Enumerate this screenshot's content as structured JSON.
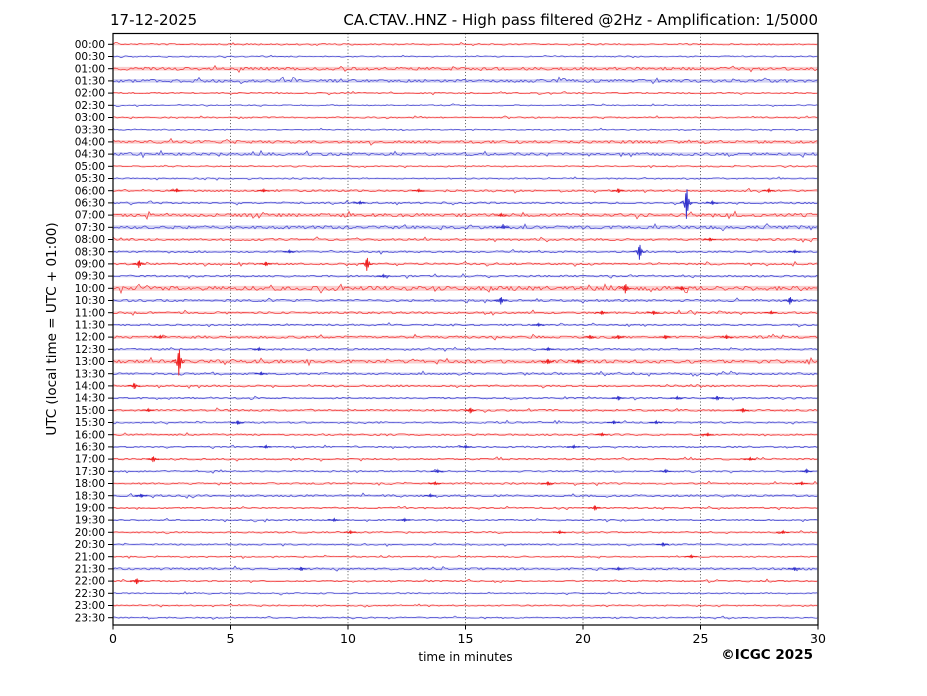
{
  "header": {
    "date": "17-12-2025",
    "title": "CA.CTAV..HNZ - High pass filtered @2Hz - Amplification: 1/5000"
  },
  "axes": {
    "ylabel": "UTC (local time = UTC + 01:00)",
    "xlabel": "time in minutes"
  },
  "footer": {
    "copyright": "©ICGC 2025"
  },
  "chart_data": {
    "type": "line",
    "subtype": "helicorder-dayplot",
    "station": "CA.CTAV..HNZ",
    "date": "17-12-2025",
    "filter": "High pass filtered @2Hz",
    "amplification": "1/5000",
    "minutes_per_line": 30,
    "xlim": [
      0,
      30
    ],
    "xticks": [
      0,
      5,
      10,
      15,
      20,
      25,
      30
    ],
    "gridline_minutes": [
      5,
      10,
      15,
      20,
      25
    ],
    "grid_color": "#444444",
    "trace_colors": {
      "red": "#ee2222",
      "blue": "#3333cc"
    },
    "rows": [
      {
        "label": "00:00",
        "color": "red",
        "noise": 0.9
      },
      {
        "label": "00:30",
        "color": "blue",
        "noise": 0.7
      },
      {
        "label": "01:00",
        "color": "red",
        "noise": 1.7
      },
      {
        "label": "01:30",
        "color": "blue",
        "noise": 1.7
      },
      {
        "label": "02:00",
        "color": "red",
        "noise": 0.8
      },
      {
        "label": "02:30",
        "color": "blue",
        "noise": 0.7
      },
      {
        "label": "03:00",
        "color": "red",
        "noise": 0.8
      },
      {
        "label": "03:30",
        "color": "blue",
        "noise": 0.7
      },
      {
        "label": "04:00",
        "color": "red",
        "noise": 1.6
      },
      {
        "label": "04:30",
        "color": "blue",
        "noise": 1.6
      },
      {
        "label": "05:00",
        "color": "red",
        "noise": 0.8
      },
      {
        "label": "05:30",
        "color": "blue",
        "noise": 0.8
      },
      {
        "label": "06:00",
        "color": "red",
        "noise": 1.1
      },
      {
        "label": "06:30",
        "color": "blue",
        "noise": 1.1
      },
      {
        "label": "07:00",
        "color": "red",
        "noise": 1.8
      },
      {
        "label": "07:30",
        "color": "blue",
        "noise": 1.8
      },
      {
        "label": "08:00",
        "color": "red",
        "noise": 1.2
      },
      {
        "label": "08:30",
        "color": "blue",
        "noise": 1.1
      },
      {
        "label": "09:00",
        "color": "red",
        "noise": 1.1
      },
      {
        "label": "09:30",
        "color": "blue",
        "noise": 1.1
      },
      {
        "label": "10:00",
        "color": "red",
        "noise": 2.3
      },
      {
        "label": "10:30",
        "color": "blue",
        "noise": 1.3
      },
      {
        "label": "11:00",
        "color": "red",
        "noise": 1.2
      },
      {
        "label": "11:30",
        "color": "blue",
        "noise": 1.0
      },
      {
        "label": "12:00",
        "color": "red",
        "noise": 1.4
      },
      {
        "label": "12:30",
        "color": "blue",
        "noise": 1.1
      },
      {
        "label": "13:00",
        "color": "red",
        "noise": 1.9
      },
      {
        "label": "13:30",
        "color": "blue",
        "noise": 1.2
      },
      {
        "label": "14:00",
        "color": "red",
        "noise": 1.1
      },
      {
        "label": "14:30",
        "color": "blue",
        "noise": 1.0
      },
      {
        "label": "15:00",
        "color": "red",
        "noise": 1.1
      },
      {
        "label": "15:30",
        "color": "blue",
        "noise": 1.0
      },
      {
        "label": "16:00",
        "color": "red",
        "noise": 1.0
      },
      {
        "label": "16:30",
        "color": "blue",
        "noise": 0.9
      },
      {
        "label": "17:00",
        "color": "red",
        "noise": 1.0
      },
      {
        "label": "17:30",
        "color": "blue",
        "noise": 0.9
      },
      {
        "label": "18:00",
        "color": "red",
        "noise": 1.0
      },
      {
        "label": "18:30",
        "color": "blue",
        "noise": 1.2
      },
      {
        "label": "19:00",
        "color": "red",
        "noise": 0.9
      },
      {
        "label": "19:30",
        "color": "blue",
        "noise": 0.9
      },
      {
        "label": "20:00",
        "color": "red",
        "noise": 0.9
      },
      {
        "label": "20:30",
        "color": "blue",
        "noise": 0.9
      },
      {
        "label": "21:00",
        "color": "red",
        "noise": 0.8
      },
      {
        "label": "21:30",
        "color": "blue",
        "noise": 1.3
      },
      {
        "label": "22:00",
        "color": "red",
        "noise": 0.9
      },
      {
        "label": "22:30",
        "color": "blue",
        "noise": 0.8
      },
      {
        "label": "23:00",
        "color": "red",
        "noise": 0.8
      },
      {
        "label": "23:30",
        "color": "blue",
        "noise": 0.8
      }
    ],
    "events": [
      {
        "row": "06:00",
        "minute": 2.7,
        "amp": 1.5
      },
      {
        "row": "06:00",
        "minute": 6.4,
        "amp": 1.5
      },
      {
        "row": "06:00",
        "minute": 13.0,
        "amp": 1.5
      },
      {
        "row": "06:00",
        "minute": 21.5,
        "amp": 2.2
      },
      {
        "row": "06:00",
        "minute": 27.9,
        "amp": 1.8
      },
      {
        "row": "06:30",
        "minute": 10.5,
        "amp": 1.5
      },
      {
        "row": "06:30",
        "minute": 24.4,
        "amp": 16
      },
      {
        "row": "06:30",
        "minute": 25.5,
        "amp": 1.8
      },
      {
        "row": "07:00",
        "minute": 16.5,
        "amp": 1.5
      },
      {
        "row": "07:30",
        "minute": 16.6,
        "amp": 1.5
      },
      {
        "row": "08:00",
        "minute": 25.4,
        "amp": 1.8
      },
      {
        "row": "08:30",
        "minute": 7.5,
        "amp": 1.5
      },
      {
        "row": "08:30",
        "minute": 22.4,
        "amp": 8
      },
      {
        "row": "08:30",
        "minute": 29.0,
        "amp": 1.5
      },
      {
        "row": "09:00",
        "minute": 1.1,
        "amp": 4
      },
      {
        "row": "09:00",
        "minute": 6.5,
        "amp": 2.2
      },
      {
        "row": "09:00",
        "minute": 10.8,
        "amp": 7
      },
      {
        "row": "09:30",
        "minute": 11.5,
        "amp": 1.5
      },
      {
        "row": "10:00",
        "minute": 21.8,
        "amp": 5
      },
      {
        "row": "10:00",
        "minute": 24.2,
        "amp": 2
      },
      {
        "row": "10:30",
        "minute": 16.5,
        "amp": 4
      },
      {
        "row": "10:30",
        "minute": 28.8,
        "amp": 4
      },
      {
        "row": "11:00",
        "minute": 20.8,
        "amp": 2
      },
      {
        "row": "11:00",
        "minute": 23.0,
        "amp": 2
      },
      {
        "row": "11:00",
        "minute": 28.0,
        "amp": 1.5
      },
      {
        "row": "11:30",
        "minute": 18.1,
        "amp": 1.5
      },
      {
        "row": "12:00",
        "minute": 2.0,
        "amp": 1.5
      },
      {
        "row": "12:00",
        "minute": 20.3,
        "amp": 2
      },
      {
        "row": "12:00",
        "minute": 21.5,
        "amp": 2
      },
      {
        "row": "12:00",
        "minute": 23.5,
        "amp": 2
      },
      {
        "row": "12:00",
        "minute": 26.1,
        "amp": 1.8
      },
      {
        "row": "12:30",
        "minute": 6.2,
        "amp": 1.5
      },
      {
        "row": "12:30",
        "minute": 18.5,
        "amp": 1.5
      },
      {
        "row": "13:00",
        "minute": 2.8,
        "amp": 14
      },
      {
        "row": "13:00",
        "minute": 18.5,
        "amp": 2.5
      },
      {
        "row": "13:00",
        "minute": 19.8,
        "amp": 2
      },
      {
        "row": "13:30",
        "minute": 6.3,
        "amp": 1.5
      },
      {
        "row": "14:00",
        "minute": 0.9,
        "amp": 3
      },
      {
        "row": "14:30",
        "minute": 21.5,
        "amp": 2.2
      },
      {
        "row": "14:30",
        "minute": 24.0,
        "amp": 1.5
      },
      {
        "row": "14:30",
        "minute": 25.7,
        "amp": 2.2
      },
      {
        "row": "15:00",
        "minute": 1.5,
        "amp": 1.5
      },
      {
        "row": "15:00",
        "minute": 15.2,
        "amp": 3
      },
      {
        "row": "15:00",
        "minute": 26.8,
        "amp": 2.2
      },
      {
        "row": "15:30",
        "minute": 5.3,
        "amp": 2
      },
      {
        "row": "15:30",
        "minute": 21.3,
        "amp": 1.5
      },
      {
        "row": "15:30",
        "minute": 23.1,
        "amp": 1.5
      },
      {
        "row": "16:00",
        "minute": 20.8,
        "amp": 1.5
      },
      {
        "row": "16:00",
        "minute": 25.3,
        "amp": 1.5
      },
      {
        "row": "16:30",
        "minute": 6.5,
        "amp": 1.5
      },
      {
        "row": "16:30",
        "minute": 15.0,
        "amp": 1.5
      },
      {
        "row": "16:30",
        "minute": 19.6,
        "amp": 1.5
      },
      {
        "row": "17:00",
        "minute": 1.7,
        "amp": 3
      },
      {
        "row": "17:00",
        "minute": 27.1,
        "amp": 1.5
      },
      {
        "row": "17:30",
        "minute": 13.8,
        "amp": 1.5
      },
      {
        "row": "17:30",
        "minute": 23.5,
        "amp": 1.5
      },
      {
        "row": "17:30",
        "minute": 29.5,
        "amp": 1.8
      },
      {
        "row": "18:00",
        "minute": 13.7,
        "amp": 1.5
      },
      {
        "row": "18:00",
        "minute": 18.5,
        "amp": 2
      },
      {
        "row": "18:00",
        "minute": 29.3,
        "amp": 1.5
      },
      {
        "row": "18:30",
        "minute": 1.2,
        "amp": 1.8
      },
      {
        "row": "18:30",
        "minute": 13.5,
        "amp": 1.5
      },
      {
        "row": "19:00",
        "minute": 20.5,
        "amp": 2.5
      },
      {
        "row": "19:30",
        "minute": 9.4,
        "amp": 1.5
      },
      {
        "row": "19:30",
        "minute": 12.4,
        "amp": 1.5
      },
      {
        "row": "20:00",
        "minute": 10.1,
        "amp": 1.5
      },
      {
        "row": "20:00",
        "minute": 19.0,
        "amp": 1.5
      },
      {
        "row": "20:00",
        "minute": 28.5,
        "amp": 1.5
      },
      {
        "row": "20:30",
        "minute": 23.4,
        "amp": 2
      },
      {
        "row": "21:00",
        "minute": 24.6,
        "amp": 1.5
      },
      {
        "row": "21:30",
        "minute": 8.0,
        "amp": 2
      },
      {
        "row": "21:30",
        "minute": 21.5,
        "amp": 1.5
      },
      {
        "row": "21:30",
        "minute": 29.0,
        "amp": 1.8
      },
      {
        "row": "22:00",
        "minute": 1.0,
        "amp": 3
      }
    ]
  }
}
